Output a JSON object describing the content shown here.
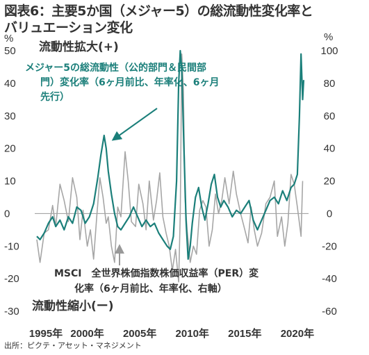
{
  "title_line1": "図表6：主要5か国（メジャー5）の総流動性変化率と",
  "title_line2": "バリュエーション変化",
  "source": "出所：ピクテ・アセット・マネジメント",
  "liquidity_up_label": "流動性拡大(+)",
  "liquidity_down_label": "流動性縮小(ー)",
  "series_teal_label": [
    "メジャー5の総流動性（公的部門＆民間部",
    "門）変化率（6ヶ月前比、年率化、6ヶ月",
    "先行）"
  ],
  "series_gray_label": [
    "MSCI　全世界株価指数株価収益率（PER）変",
    "化率（6ヶ月前比、年率化、右軸）"
  ],
  "colors": {
    "teal": "#1b7f7a",
    "gray": "#a6a6a6",
    "zero_line": "#999999"
  },
  "chart_data": {
    "type": "line",
    "x_ticks": [
      "1995年",
      "2000年",
      "2005年",
      "2010年",
      "2015年",
      "2020年"
    ],
    "x_range": [
      1995.0,
      2020.8
    ],
    "y_left_ticks": [
      50,
      40,
      30,
      20,
      10,
      0,
      -10,
      -20,
      -30
    ],
    "y_left_range": [
      -30,
      50
    ],
    "y_right_ticks": [
      100,
      80,
      60,
      40,
      20,
      0,
      -20,
      -40,
      -60
    ],
    "y_right_range": [
      -60,
      100
    ],
    "series": [
      {
        "name": "メジャー5の総流動性（公的部門＆民間部門）変化率（6ヶ月前比、年率化、6ヶ月先行）",
        "axis": "left",
        "points": [
          [
            1995.2,
            -7
          ],
          [
            1995.5,
            -8
          ],
          [
            1995.9,
            -6
          ],
          [
            1996.3,
            -3
          ],
          [
            1996.7,
            -1
          ],
          [
            1997.0,
            -4
          ],
          [
            1997.4,
            -2
          ],
          [
            1997.8,
            -5
          ],
          [
            1998.2,
            -1
          ],
          [
            1998.6,
            -3
          ],
          [
            1999.0,
            2
          ],
          [
            1999.4,
            1
          ],
          [
            1999.8,
            -3
          ],
          [
            2000.2,
            -1
          ],
          [
            2000.6,
            3
          ],
          [
            2001.0,
            11
          ],
          [
            2001.3,
            18
          ],
          [
            2001.6,
            24
          ],
          [
            2001.8,
            20
          ],
          [
            2002.0,
            13
          ],
          [
            2002.3,
            6
          ],
          [
            2002.6,
            0
          ],
          [
            2002.9,
            -4
          ],
          [
            2003.2,
            -5
          ],
          [
            2003.6,
            -3
          ],
          [
            2004.0,
            -1
          ],
          [
            2004.4,
            2
          ],
          [
            2004.8,
            -1
          ],
          [
            2005.2,
            -4
          ],
          [
            2005.6,
            -2
          ],
          [
            2006.0,
            -4
          ],
          [
            2006.4,
            -3
          ],
          [
            2006.8,
            -6
          ],
          [
            2007.2,
            -8
          ],
          [
            2007.6,
            -10
          ],
          [
            2007.9,
            -11
          ],
          [
            2008.2,
            -7
          ],
          [
            2008.5,
            10
          ],
          [
            2008.7,
            40
          ],
          [
            2008.85,
            50
          ],
          [
            2009.0,
            44
          ],
          [
            2009.2,
            20
          ],
          [
            2009.4,
            -2
          ],
          [
            2009.6,
            -14
          ],
          [
            2009.8,
            -10
          ],
          [
            2010.0,
            -3
          ],
          [
            2010.3,
            5
          ],
          [
            2010.6,
            8
          ],
          [
            2010.9,
            2
          ],
          [
            2011.2,
            -2
          ],
          [
            2011.5,
            3
          ],
          [
            2011.8,
            9
          ],
          [
            2012.1,
            12
          ],
          [
            2012.4,
            5
          ],
          [
            2012.7,
            2
          ],
          [
            2013.0,
            4
          ],
          [
            2013.4,
            2
          ],
          [
            2013.8,
            -1
          ],
          [
            2014.2,
            1
          ],
          [
            2014.6,
            0
          ],
          [
            2015.0,
            2
          ],
          [
            2015.4,
            4
          ],
          [
            2015.8,
            -2
          ],
          [
            2016.2,
            -5
          ],
          [
            2016.6,
            -2
          ],
          [
            2017.0,
            1
          ],
          [
            2017.4,
            4
          ],
          [
            2017.8,
            5
          ],
          [
            2018.2,
            3
          ],
          [
            2018.6,
            7
          ],
          [
            2019.0,
            4
          ],
          [
            2019.4,
            8
          ],
          [
            2019.7,
            9
          ],
          [
            2020.0,
            12
          ],
          [
            2020.2,
            30
          ],
          [
            2020.35,
            49
          ],
          [
            2020.5,
            35
          ],
          [
            2020.6,
            41
          ]
        ]
      },
      {
        "name": "MSCI　全世界株価指数株価収益率（PER）変化率（6ヶ月前比、年率化、右軸）",
        "axis": "right",
        "points": [
          [
            1995.2,
            -16
          ],
          [
            1995.5,
            -30
          ],
          [
            1995.9,
            -12
          ],
          [
            1996.3,
            -10
          ],
          [
            1996.7,
            5
          ],
          [
            1997.0,
            -8
          ],
          [
            1997.4,
            18
          ],
          [
            1997.8,
            8
          ],
          [
            1998.2,
            -5
          ],
          [
            1998.6,
            22
          ],
          [
            1999.0,
            10
          ],
          [
            1999.3,
            -16
          ],
          [
            1999.6,
            2
          ],
          [
            2000.0,
            -20
          ],
          [
            2000.3,
            -10
          ],
          [
            2000.6,
            -28
          ],
          [
            2000.9,
            -2
          ],
          [
            2001.2,
            22
          ],
          [
            2001.5,
            10
          ],
          [
            2001.8,
            -6
          ],
          [
            2002.0,
            -2
          ],
          [
            2002.3,
            -20
          ],
          [
            2002.6,
            -30
          ],
          [
            2002.9,
            4
          ],
          [
            2003.2,
            -2
          ],
          [
            2003.6,
            38
          ],
          [
            2003.9,
            20
          ],
          [
            2004.2,
            -5
          ],
          [
            2004.6,
            -8
          ],
          [
            2004.9,
            18
          ],
          [
            2005.3,
            6
          ],
          [
            2005.6,
            -10
          ],
          [
            2005.9,
            20
          ],
          [
            2006.3,
            -4
          ],
          [
            2006.6,
            8
          ],
          [
            2006.9,
            25
          ],
          [
            2007.2,
            -2
          ],
          [
            2007.5,
            -12
          ],
          [
            2007.8,
            -20
          ],
          [
            2008.1,
            -35
          ],
          [
            2008.4,
            -22
          ],
          [
            2008.7,
            -42
          ],
          [
            2008.85,
            0
          ],
          [
            2009.0,
            98
          ],
          [
            2009.15,
            76
          ],
          [
            2009.3,
            10
          ],
          [
            2009.5,
            -10
          ],
          [
            2009.8,
            -30
          ],
          [
            2010.1,
            -20
          ],
          [
            2010.4,
            -25
          ],
          [
            2010.7,
            2
          ],
          [
            2011.0,
            8
          ],
          [
            2011.3,
            4
          ],
          [
            2011.6,
            -20
          ],
          [
            2011.9,
            -10
          ],
          [
            2012.2,
            12
          ],
          [
            2012.5,
            0
          ],
          [
            2012.8,
            8
          ],
          [
            2013.1,
            22
          ],
          [
            2013.5,
            6
          ],
          [
            2013.9,
            26
          ],
          [
            2014.2,
            12
          ],
          [
            2014.6,
            0
          ],
          [
            2015.0,
            -10
          ],
          [
            2015.3,
            -18
          ],
          [
            2015.6,
            4
          ],
          [
            2015.9,
            -10
          ],
          [
            2016.2,
            -20
          ],
          [
            2016.6,
            -12
          ],
          [
            2017.0,
            6
          ],
          [
            2017.4,
            10
          ],
          [
            2017.8,
            20
          ],
          [
            2018.1,
            -14
          ],
          [
            2018.5,
            -2
          ],
          [
            2018.8,
            -20
          ],
          [
            2019.1,
            -6
          ],
          [
            2019.4,
            24
          ],
          [
            2019.7,
            18
          ],
          [
            2020.0,
            4
          ],
          [
            2020.2,
            -6
          ],
          [
            2020.35,
            -14
          ],
          [
            2020.5,
            20
          ]
        ]
      }
    ]
  }
}
